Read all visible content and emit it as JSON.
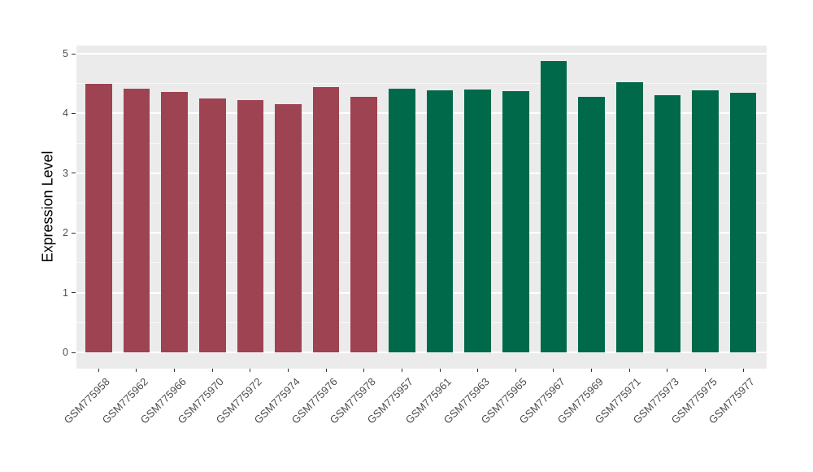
{
  "chart_data": {
    "type": "bar",
    "title": "",
    "xlabel": "",
    "ylabel": "Expression Level",
    "ylim": [
      0,
      5.12
    ],
    "yticks": [
      0,
      1,
      2,
      3,
      4,
      5
    ],
    "yticks_minor": [
      0.5,
      1.5,
      2.5,
      3.5,
      4.5
    ],
    "grid": "on",
    "legend": "none",
    "panel_bg": "#EBEBEB",
    "grid_color": "#FFFFFF",
    "categories": [
      "GSM775958",
      "GSM775962",
      "GSM775966",
      "GSM775970",
      "GSM775972",
      "GSM775974",
      "GSM775976",
      "GSM775978",
      "GSM775957",
      "GSM775961",
      "GSM775963",
      "GSM775965",
      "GSM775967",
      "GSM775969",
      "GSM775971",
      "GSM775973",
      "GSM775975",
      "GSM775977"
    ],
    "values": [
      4.5,
      4.42,
      4.36,
      4.25,
      4.22,
      4.15,
      4.44,
      4.28,
      4.41,
      4.39,
      4.4,
      4.38,
      4.88,
      4.28,
      4.52,
      4.3,
      4.39,
      4.35
    ],
    "bar_colors": [
      "#9D4351",
      "#9D4351",
      "#9D4351",
      "#9D4351",
      "#9D4351",
      "#9D4351",
      "#9D4351",
      "#9D4351",
      "#00694A",
      "#00694A",
      "#00694A",
      "#00694A",
      "#00694A",
      "#00694A",
      "#00694A",
      "#00694A",
      "#00694A",
      "#00694A"
    ],
    "group_colors": {
      "maroon_group": "#9D4351",
      "green_group": "#00694A"
    },
    "axis_text_color": "#4D4D4D",
    "axis_title_color": "#000000"
  }
}
